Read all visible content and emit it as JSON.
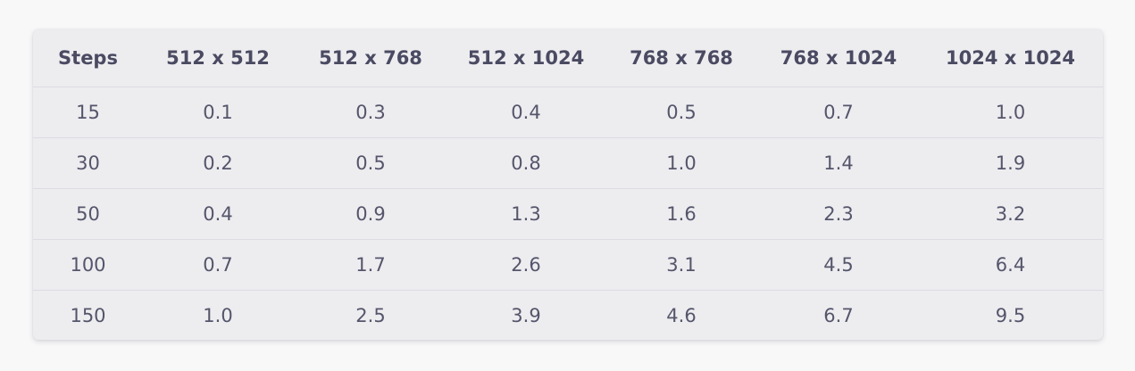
{
  "table": {
    "headers": [
      "Steps",
      "512 x 512",
      "512 x 768",
      "512 x 1024",
      "768 x 768",
      "768 x 1024",
      "1024 x 1024"
    ],
    "rows": [
      [
        "15",
        "0.1",
        "0.3",
        "0.4",
        "0.5",
        "0.7",
        "1.0"
      ],
      [
        "30",
        "0.2",
        "0.5",
        "0.8",
        "1.0",
        "1.4",
        "1.9"
      ],
      [
        "50",
        "0.4",
        "0.9",
        "1.3",
        "1.6",
        "2.3",
        "3.2"
      ],
      [
        "100",
        "0.7",
        "1.7",
        "2.6",
        "3.1",
        "4.5",
        "6.4"
      ],
      [
        "150",
        "1.0",
        "2.5",
        "3.9",
        "4.6",
        "6.7",
        "9.5"
      ]
    ]
  }
}
